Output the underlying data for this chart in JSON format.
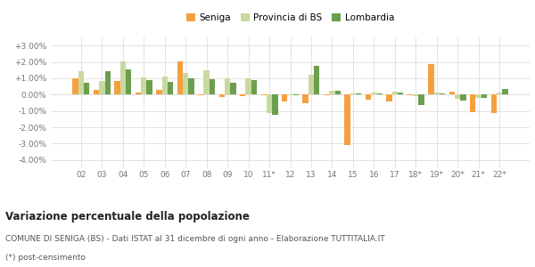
{
  "years": [
    "02",
    "03",
    "04",
    "05",
    "06",
    "07",
    "08",
    "09",
    "10",
    "11*",
    "12",
    "13",
    "14",
    "15",
    "16",
    "17",
    "18*",
    "19*",
    "20*",
    "21*",
    "22*"
  ],
  "seniga": [
    1.0,
    0.3,
    0.85,
    0.1,
    0.3,
    2.05,
    -0.05,
    -0.15,
    -0.1,
    -0.05,
    -0.4,
    -0.55,
    -0.05,
    -3.1,
    -0.3,
    -0.4,
    -0.05,
    1.85,
    0.2,
    -1.05,
    -1.15
  ],
  "provincia_bs": [
    1.45,
    0.85,
    2.05,
    1.05,
    1.1,
    1.3,
    1.5,
    1.0,
    1.0,
    -1.1,
    -0.05,
    1.2,
    0.25,
    0.05,
    0.15,
    0.18,
    -0.1,
    0.1,
    -0.28,
    -0.18,
    0.1
  ],
  "lombardia": [
    0.75,
    1.45,
    1.55,
    0.88,
    0.8,
    1.0,
    0.95,
    0.72,
    0.88,
    -1.22,
    -0.05,
    1.78,
    0.25,
    0.05,
    0.05,
    0.15,
    -0.62,
    0.08,
    -0.38,
    -0.18,
    0.32
  ],
  "color_seniga": "#f5a040",
  "color_provincia": "#c8d9a0",
  "color_lombardia": "#6b9e4e",
  "background_color": "#ffffff",
  "grid_color": "#dddddd",
  "ylim": [
    -4.5,
    3.5
  ],
  "yticks": [
    -4.0,
    -3.0,
    -2.0,
    -1.0,
    0.0,
    1.0,
    2.0,
    3.0
  ],
  "title": "Variazione percentuale della popolazione",
  "footer1": "COMUNE DI SENIGA (BS) - Dati ISTAT al 31 dicembre di ogni anno - Elaborazione TUTTITALIA.IT",
  "footer2": "(*) post-censimento",
  "legend_labels": [
    "Seniga",
    "Provincia di BS",
    "Lombardia"
  ]
}
